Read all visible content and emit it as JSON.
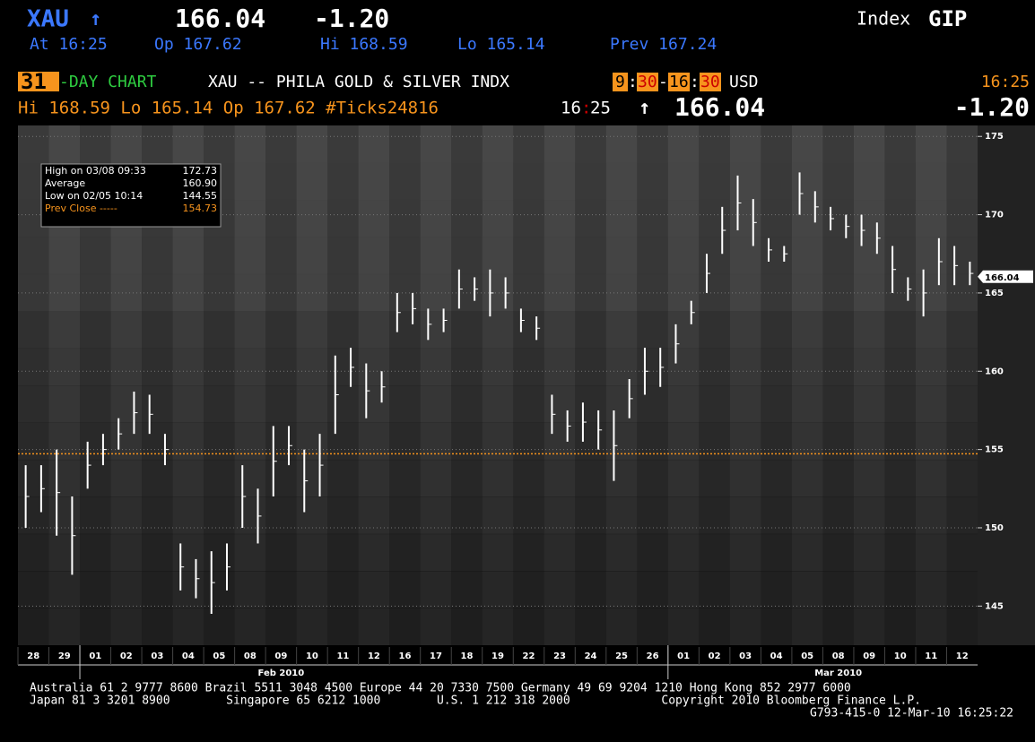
{
  "header": {
    "ticker": "XAU",
    "arrow": "↑",
    "price": "166.04",
    "change": "-1.20",
    "index_label": "Index",
    "index_code": "GIP",
    "row2": [
      "At 16:25",
      "Op 167.62",
      "Hi 168.59",
      "Lo 165.14",
      "Prev 167.24"
    ],
    "row3": {
      "days": "31",
      "chart_label": "-DAY CHART",
      "desc": "XAU -- PHILA GOLD & SILVER INDX",
      "t1h": "9",
      "t1m": "30",
      "t2h": "16",
      "t2m": "30",
      "currency": "USD",
      "time": "16:25"
    },
    "row4": {
      "stats": "Hi 168.59 Lo 165.14 Op 167.62 #Ticks24816",
      "time_h": "16",
      "time_m": "25",
      "arrow": "↑",
      "price": "166.04",
      "change": "-1.20"
    }
  },
  "chart_data": {
    "type": "highlow",
    "days": [
      "28",
      "29",
      "01",
      "02",
      "03",
      "04",
      "05",
      "08",
      "09",
      "10",
      "11",
      "12",
      "16",
      "17",
      "18",
      "19",
      "22",
      "23",
      "24",
      "25",
      "26",
      "01",
      "02",
      "03",
      "04",
      "05",
      "08",
      "09",
      "10",
      "11",
      "12"
    ],
    "months": [
      {
        "label": "Feb 2010",
        "day": 8
      },
      {
        "label": "Mar 2010",
        "day": 26
      }
    ],
    "low": [
      150,
      151,
      149.5,
      147,
      152.5,
      154,
      155,
      156,
      156,
      154,
      146,
      145.5,
      144.5,
      146,
      150,
      149,
      152,
      154,
      151,
      152,
      156,
      159,
      157,
      158,
      162.5,
      163,
      162,
      162.5,
      164,
      164.5,
      163.5,
      164,
      162.5,
      162,
      156,
      155.5,
      155.5,
      155,
      153,
      157,
      158.5,
      159,
      160.5,
      163,
      165,
      167.5,
      169,
      168,
      167,
      167,
      170,
      169.5,
      169,
      168.5,
      168,
      167.5,
      165,
      164.5,
      163.5,
      165.5,
      165.5,
      165.5
    ],
    "high": [
      154,
      154,
      155,
      152,
      155.5,
      156,
      157,
      158.7,
      158.5,
      156,
      149,
      148,
      148.5,
      149,
      154,
      152.5,
      156.5,
      156.5,
      155,
      156,
      161,
      161.5,
      160.5,
      160,
      165,
      165,
      164,
      164,
      166.5,
      166,
      166.5,
      166,
      164,
      163.5,
      158.5,
      157.5,
      158,
      157.5,
      157.5,
      159.5,
      161.5,
      161.5,
      163,
      164.5,
      167.5,
      170.5,
      172.5,
      171,
      168.5,
      168,
      172.7,
      171.5,
      170.5,
      170,
      170,
      169.5,
      168,
      166,
      166.5,
      168.5,
      168,
      167
    ],
    "ylim": [
      142.5,
      175.7
    ],
    "yticks": [
      145,
      150,
      155,
      160,
      165,
      170,
      175
    ],
    "last": 166.04,
    "legend": {
      "labels": [
        "High on 03/08 09:33",
        "Average",
        "Low on 02/05 10:14",
        "Prev Close -----"
      ],
      "values": [
        172.73,
        160.9,
        144.55,
        154.73
      ],
      "value_labels": [
        "172.73",
        "160.90",
        "144.55",
        "154.73"
      ]
    }
  },
  "footer": [
    "Australia 61 2 9777 8600 Brazil 5511 3048 4500 Europe 44 20 7330 7500 Germany 49 69 9204 1210 Hong Kong 852 2977 6000",
    "Japan 81 3 3201 8900        Singapore 65 6212 1000        U.S. 1 212 318 2000             Copyright 2010 Bloomberg Finance L.P.",
    "G793-415-0 12-Mar-10 16:25:22"
  ]
}
